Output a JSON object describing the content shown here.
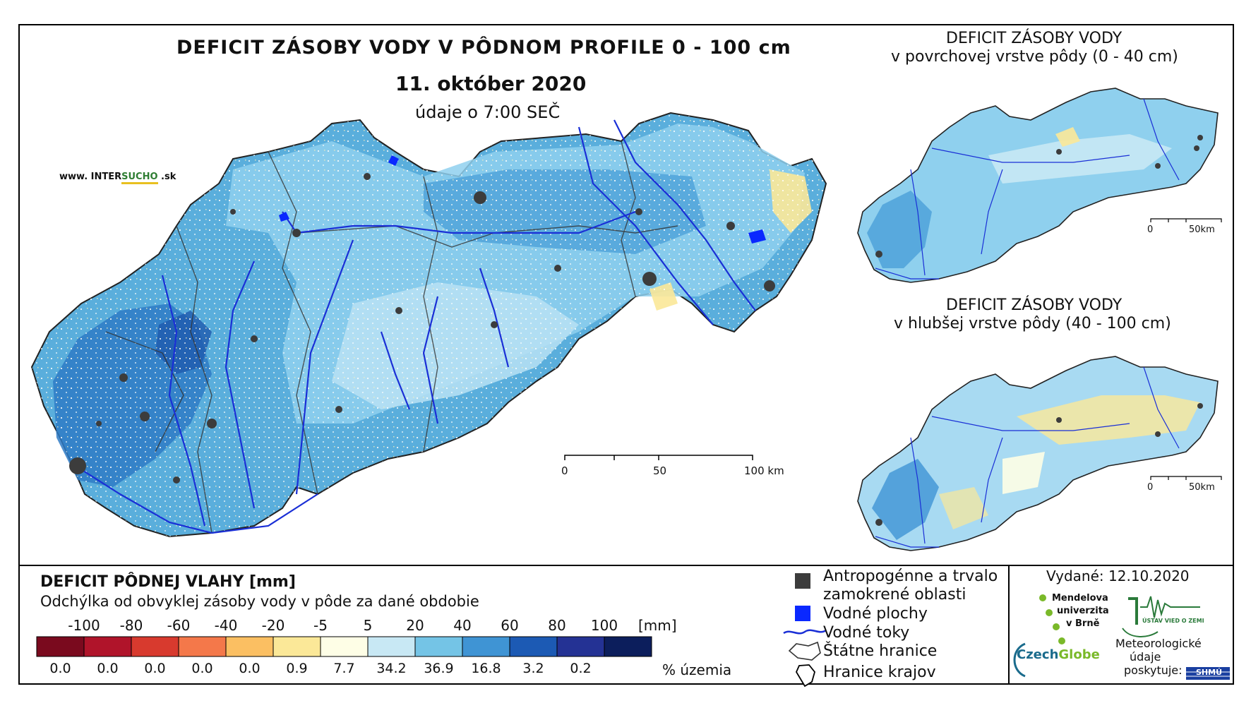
{
  "main_title": "DEFICIT ZÁSOBY VODY V PÔDNOM PROFILE 0 - 100 cm",
  "main_date": "11. október 2020",
  "main_time": "údaje o 7:00 SEČ",
  "website": {
    "prefix": "www. INTER",
    "highlight": "SUCHO",
    "suffix": " .sk"
  },
  "inset_top": {
    "title": "DEFICIT ZÁSOBY VODY",
    "subtitle": "v povrchovej vrstve pôdy (0 - 40 cm)",
    "scale_labels": [
      "0",
      "50km"
    ]
  },
  "inset_bottom": {
    "title": "DEFICIT ZÁSOBY VODY",
    "subtitle": "v hlubšej vrstve pôdy (40 - 100 cm)",
    "scale_labels": [
      "0",
      "50km"
    ]
  },
  "main_scale_labels": [
    "0",
    "50",
    "100 km"
  ],
  "legend": {
    "title": "DEFICIT PÔDNEJ VLAHY [mm]",
    "subtitle": "Odchýlka od obvyklej zásoby vody v pôde za dané obdobie",
    "breaks": [
      "-100",
      "-80",
      "-60",
      "-40",
      "-20",
      "-5",
      "5",
      "20",
      "40",
      "60",
      "80",
      "100"
    ],
    "unit": "[mm]",
    "colors": [
      "#7a0a1e",
      "#b0142a",
      "#d83a2e",
      "#f4784a",
      "#fbbf62",
      "#fbe898",
      "#fefee6",
      "#c8e8f4",
      "#74c4e6",
      "#3f94d4",
      "#1c5ab4",
      "#243294",
      "#0c1e5c"
    ],
    "percentages": [
      "0.0",
      "0.0",
      "0.0",
      "0.0",
      "0.0",
      "0.9",
      "7.7",
      "34.2",
      "36.9",
      "16.8",
      "3.2",
      "0.2"
    ],
    "percent_unit": "% územia"
  },
  "map_legend": {
    "anthropogenic": "Antropogénne a trvalo\nzamokrené oblasti",
    "anthropogenic_l1": "Antropogénne a trvalo",
    "anthropogenic_l2": "zamokrené oblasti",
    "water_bodies": "Vodné plochy",
    "rivers": "Vodné toky",
    "borders": "Štátne hranice",
    "regions": "Hranice krajov"
  },
  "issued": "Vydané: 12.10.2020",
  "logos": {
    "mendel": [
      "Mendelova",
      "univerzita",
      "v Brně"
    ],
    "czechglobe_a": "Czech",
    "czechglobe_b": "Globe",
    "ustav": "ÚSTAV VIED O ZEMI",
    "meteo": [
      "Meteorologické",
      "údaje",
      "poskytuje:"
    ],
    "shmu": "SHMÚ"
  }
}
